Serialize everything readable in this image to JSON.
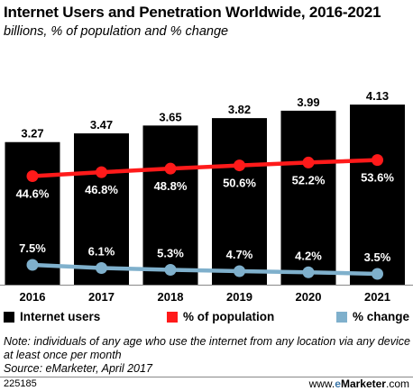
{
  "header": {
    "title": "Internet Users and Penetration Worldwide, 2016-2021",
    "subtitle": "billions, % of population and % change"
  },
  "colors": {
    "bars": "#000000",
    "population": "#ff1a1a",
    "change": "#7fb0cc"
  },
  "legend": {
    "users": "Internet users",
    "population": "% of population",
    "change": "% change"
  },
  "chart_data": {
    "type": "bar",
    "categories": [
      "2016",
      "2017",
      "2018",
      "2019",
      "2020",
      "2021"
    ],
    "series": [
      {
        "name": "Internet users",
        "type": "bar",
        "values": [
          3.27,
          3.47,
          3.65,
          3.82,
          3.99,
          4.13
        ],
        "labels": [
          "3.27",
          "3.47",
          "3.65",
          "3.82",
          "3.99",
          "4.13"
        ]
      },
      {
        "name": "% of population",
        "type": "line",
        "values": [
          44.6,
          46.8,
          48.8,
          50.6,
          52.2,
          53.6
        ],
        "labels": [
          "44.6%",
          "46.8%",
          "48.8%",
          "50.6%",
          "52.2%",
          "53.6%"
        ]
      },
      {
        "name": "% change",
        "type": "line",
        "values": [
          7.5,
          6.1,
          5.3,
          4.7,
          4.2,
          3.5
        ],
        "labels": [
          "7.5%",
          "6.1%",
          "5.3%",
          "4.7%",
          "4.2%",
          "3.5%"
        ]
      }
    ]
  },
  "footer": {
    "note": "Note: individuals of any age who use the internet from any location via any device at least once per month",
    "source": "Source: eMarketer, April 2017",
    "chart_id": "225185",
    "brand_prefix": "www.",
    "brand_e": "e",
    "brand_name": "Marketer",
    "brand_suffix": ".com"
  }
}
